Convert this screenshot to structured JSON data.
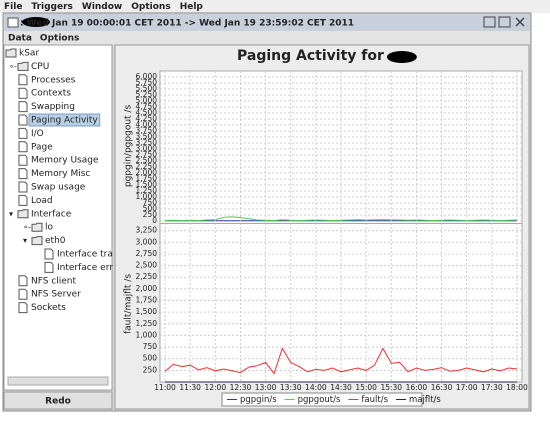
{
  "menu": [
    "File",
    "Triggers",
    "Window",
    "Options",
    "Help"
  ],
  "window": {
    "title": " : Wed Jan 19 00:00:01 CET 2011 -> Wed Jan 19 23:59:02 CET 2011",
    "menu": [
      "Data",
      "Options"
    ]
  },
  "tree": {
    "label": "kSar",
    "children": [
      {
        "label": "CPU",
        "collapsed": true
      },
      {
        "label": "Processes"
      },
      {
        "label": "Contexts"
      },
      {
        "label": "Swapping"
      },
      {
        "label": "Paging Activity",
        "selected": true
      },
      {
        "label": "I/O"
      },
      {
        "label": "Page"
      },
      {
        "label": "Memory Usage"
      },
      {
        "label": "Memory Misc"
      },
      {
        "label": "Swap usage"
      },
      {
        "label": "Load"
      },
      {
        "label": "Interface",
        "children": [
          {
            "label": "lo",
            "collapsed": true
          },
          {
            "label": "eth0",
            "children": [
              {
                "label": "Interface tra"
              },
              {
                "label": "Interface err"
              }
            ]
          }
        ]
      },
      {
        "label": "NFS client"
      },
      {
        "label": "NFS Server"
      },
      {
        "label": "Sockets"
      }
    ]
  },
  "button": "Redo",
  "chart_data": [
    {
      "type": "line",
      "title": "Paging Activity for",
      "ylabel": "pgpgin/pgpgout /s",
      "grid": true,
      "x": [
        660,
        670,
        680,
        690,
        700,
        710,
        720,
        730,
        740,
        750,
        760,
        770,
        780,
        790,
        800,
        810,
        820,
        830,
        840,
        850,
        860,
        870,
        880,
        890,
        900,
        910,
        920,
        930,
        940,
        950,
        960,
        970,
        980,
        990,
        1000,
        1010,
        1020,
        1030,
        1040,
        1050,
        1060,
        1070,
        1080
      ],
      "xlim": [
        654,
        1086
      ],
      "ylim": [
        0,
        6250
      ],
      "yticks": [
        0,
        250,
        500,
        750,
        {
          "value": 1000,
          "label": "1,000"
        },
        {
          "value": 1250,
          "label": "1,250"
        },
        {
          "value": 1500,
          "label": "1,500"
        },
        {
          "value": 1750,
          "label": "1,750"
        },
        {
          "value": 2000,
          "label": "2,000"
        },
        {
          "value": 2250,
          "label": "2,250"
        },
        {
          "value": 2500,
          "label": "2,500"
        },
        {
          "value": 2750,
          "label": "2,750"
        },
        {
          "value": 3000,
          "label": "3,000"
        },
        {
          "value": 3250,
          "label": "3,250"
        },
        {
          "value": 3500,
          "label": "3,500"
        },
        {
          "value": 3750,
          "label": "3,750"
        },
        {
          "value": 4000,
          "label": "4,000"
        },
        {
          "value": 4250,
          "label": "4,250"
        },
        {
          "value": 4500,
          "label": "4,500"
        },
        {
          "value": 4750,
          "label": "4,750"
        },
        {
          "value": 5000,
          "label": "5,000"
        },
        {
          "value": 5250,
          "label": "5,250"
        },
        {
          "value": 5500,
          "label": "5,500"
        },
        {
          "value": 5750,
          "label": "5,750"
        },
        {
          "value": 6000,
          "label": "6,000"
        }
      ],
      "series": [
        {
          "name": "pgpgin/s",
          "color": "#3333aa",
          "values": [
            10,
            10,
            10,
            10,
            10,
            10,
            10,
            10,
            10,
            10,
            10,
            10,
            10,
            10,
            10,
            10,
            10,
            10,
            10,
            10,
            10,
            10,
            10,
            10,
            10,
            10,
            10,
            10,
            10,
            10,
            10,
            10,
            10,
            10,
            10,
            10,
            10,
            10,
            10,
            10,
            10,
            10,
            10
          ]
        },
        {
          "name": "pgpgout/s",
          "color": "#55cc55",
          "values": [
            20,
            30,
            20,
            30,
            20,
            40,
            60,
            150,
            180,
            140,
            90,
            40,
            30,
            20,
            50,
            30,
            20,
            30,
            40,
            30,
            20,
            30,
            40,
            60,
            40,
            50,
            60,
            50,
            40,
            30,
            40,
            30,
            20,
            30,
            40,
            30,
            20,
            30,
            40,
            30,
            20,
            30,
            40
          ]
        }
      ]
    },
    {
      "type": "line",
      "ylabel": "fault/majflt /s",
      "grid": true,
      "x": [
        660,
        670,
        680,
        690,
        700,
        710,
        720,
        730,
        740,
        750,
        760,
        770,
        780,
        790,
        800,
        810,
        820,
        830,
        840,
        850,
        860,
        870,
        880,
        890,
        900,
        910,
        920,
        930,
        940,
        950,
        960,
        970,
        980,
        990,
        1000,
        1010,
        1020,
        1030,
        1040,
        1050,
        1060,
        1070,
        1080
      ],
      "xlim": [
        654,
        1086
      ],
      "ylim": [
        0,
        3350
      ],
      "xticks": [
        {
          "value": 660,
          "label": "11:00"
        },
        {
          "value": 690,
          "label": "11:30"
        },
        {
          "value": 720,
          "label": "12:00"
        },
        {
          "value": 750,
          "label": "12:30"
        },
        {
          "value": 780,
          "label": "13:00"
        },
        {
          "value": 810,
          "label": "13:30"
        },
        {
          "value": 840,
          "label": "14:00"
        },
        {
          "value": 870,
          "label": "14:30"
        },
        {
          "value": 900,
          "label": "15:00"
        },
        {
          "value": 930,
          "label": "15:30"
        },
        {
          "value": 960,
          "label": "16:00"
        },
        {
          "value": 990,
          "label": "16:30"
        },
        {
          "value": 1020,
          "label": "17:00"
        },
        {
          "value": 1050,
          "label": "17:30"
        },
        {
          "value": 1080,
          "label": "18:00"
        }
      ],
      "yticks": [
        250,
        500,
        750,
        {
          "value": 1000,
          "label": "1,000"
        },
        {
          "value": 1250,
          "label": "1,250"
        },
        {
          "value": 1500,
          "label": "1,500"
        },
        {
          "value": 1750,
          "label": "1,750"
        },
        {
          "value": 2000,
          "label": "2,000"
        },
        {
          "value": 2250,
          "label": "2,250"
        },
        {
          "value": 2500,
          "label": "2,500"
        },
        {
          "value": 2750,
          "label": "2,750"
        },
        {
          "value": 3000,
          "label": "3,000"
        },
        {
          "value": 3250,
          "label": "3,250"
        }
      ],
      "series": [
        {
          "name": "fault/s",
          "color": "#ee3333",
          "values": [
            230,
            380,
            330,
            360,
            260,
            310,
            240,
            280,
            240,
            200,
            320,
            350,
            420,
            180,
            720,
            420,
            330,
            220,
            270,
            250,
            300,
            220,
            260,
            300,
            250,
            360,
            720,
            400,
            420,
            220,
            300,
            250,
            270,
            310,
            230,
            250,
            300,
            260,
            220,
            280,
            240,
            300,
            280
          ]
        },
        {
          "name": "majflt/s",
          "color": "#222255",
          "values": [
            0,
            0,
            0,
            0,
            0,
            0,
            0,
            0,
            0,
            0,
            0,
            0,
            0,
            0,
            0,
            0,
            0,
            0,
            0,
            0,
            0,
            0,
            0,
            0,
            0,
            0,
            0,
            0,
            0,
            0,
            0,
            0,
            0,
            0,
            0,
            0,
            0,
            0,
            0,
            0,
            0,
            0,
            0
          ]
        }
      ]
    }
  ]
}
